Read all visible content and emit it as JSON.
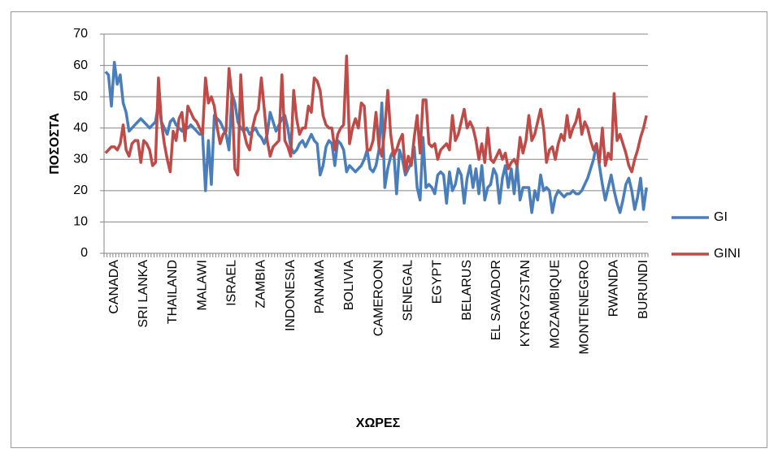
{
  "chart_data": {
    "type": "line",
    "y_label": "ΠΟΣΟΣΤΑ",
    "x_label": "ΧΩΡΕΣ",
    "categories": [
      null,
      null,
      null,
      "CANADA",
      null,
      null,
      null,
      null,
      null,
      null,
      null,
      null,
      null,
      "SRI LANKA",
      null,
      null,
      null,
      null,
      null,
      null,
      null,
      null,
      null,
      "THAILAND",
      null,
      null,
      null,
      null,
      null,
      null,
      null,
      null,
      null,
      "MALAWI",
      null,
      null,
      null,
      null,
      null,
      null,
      null,
      null,
      null,
      "ISRAEL",
      null,
      null,
      null,
      null,
      null,
      null,
      null,
      null,
      null,
      "ZAMBIA",
      null,
      null,
      null,
      null,
      null,
      null,
      null,
      null,
      null,
      "INDONESIA",
      null,
      null,
      null,
      null,
      null,
      null,
      null,
      null,
      null,
      "PANAMA",
      null,
      null,
      null,
      null,
      null,
      null,
      null,
      null,
      null,
      "BOLIVIA",
      null,
      null,
      null,
      null,
      null,
      null,
      null,
      null,
      null,
      "CAMEROON",
      null,
      null,
      null,
      null,
      null,
      null,
      null,
      null,
      null,
      "SENEGAL",
      null,
      null,
      null,
      null,
      null,
      null,
      null,
      null,
      null,
      "EGYPT",
      null,
      null,
      null,
      null,
      null,
      null,
      null,
      null,
      null,
      "BELARUS",
      null,
      null,
      null,
      null,
      null,
      null,
      null,
      null,
      null,
      "EL SAVADOR",
      null,
      null,
      null,
      null,
      null,
      null,
      null,
      null,
      null,
      "KYRGYZSTAN",
      null,
      null,
      null,
      null,
      null,
      null,
      null,
      null,
      null,
      "MOZAMBIQUE",
      null,
      null,
      null,
      null,
      null,
      null,
      null,
      null,
      null,
      "MONTENEGRO",
      null,
      null,
      null,
      null,
      null,
      null,
      null,
      null,
      null,
      "RWANDA",
      null,
      null,
      null,
      null,
      null,
      null,
      null,
      null,
      null,
      "BURUNDI",
      null
    ],
    "series": [
      {
        "name": "GI",
        "color": "#4a7ebb",
        "values": [
          58,
          57,
          47,
          61,
          54,
          57,
          48,
          45,
          39,
          40,
          41,
          42,
          43,
          42,
          41,
          40,
          41,
          42,
          48,
          42,
          40,
          38,
          42,
          43,
          41,
          40,
          39,
          41,
          40,
          41,
          40,
          39,
          38,
          38,
          20,
          36,
          22,
          44,
          43,
          42,
          40,
          38,
          33,
          51,
          48,
          42,
          40,
          39,
          40,
          38,
          39,
          40,
          38,
          37,
          35,
          38,
          45,
          42,
          39,
          41,
          43,
          44,
          40,
          34,
          32,
          33,
          35,
          36,
          34,
          36,
          38,
          36,
          35,
          25,
          28,
          34,
          36,
          35,
          28,
          36,
          35,
          33,
          26,
          28,
          27,
          26,
          27,
          28,
          30,
          33,
          27,
          26,
          28,
          33,
          48,
          21,
          27,
          31,
          33,
          19,
          33,
          30,
          25,
          27,
          29,
          34,
          21,
          17,
          37,
          21,
          22,
          21,
          19,
          25,
          26,
          25,
          16,
          26,
          20,
          22,
          27,
          25,
          16,
          24,
          28,
          21,
          27,
          19,
          28,
          17,
          21,
          22,
          27,
          25,
          16,
          24,
          28,
          21,
          27,
          19,
          28,
          17,
          21,
          21,
          21,
          13,
          20,
          17,
          25,
          20,
          21,
          20,
          13,
          18,
          20,
          19,
          18,
          19,
          19,
          20,
          19,
          19,
          20,
          22,
          24,
          27,
          30,
          35,
          28,
          22,
          17,
          21,
          25,
          20,
          16,
          13,
          17,
          22,
          24,
          20,
          14,
          18,
          24,
          14,
          21
        ]
      },
      {
        "name": "GINI",
        "color": "#be4b48",
        "values": [
          32,
          33,
          34,
          34,
          33,
          35,
          41,
          33,
          31,
          35,
          36,
          36,
          29,
          36,
          35,
          33,
          28,
          29,
          56,
          42,
          35,
          30,
          26,
          39,
          36,
          43,
          45,
          36,
          47,
          45,
          43,
          42,
          40,
          38,
          56,
          48,
          50,
          47,
          40,
          35,
          38,
          39,
          59,
          50,
          27,
          25,
          57,
          39,
          35,
          33,
          40,
          44,
          46,
          56,
          46,
          36,
          31,
          34,
          35,
          36,
          57,
          36,
          34,
          31,
          52,
          43,
          38,
          40,
          40,
          47,
          45,
          56,
          55,
          52,
          44,
          41,
          40,
          40,
          33,
          38,
          40,
          41,
          63,
          35,
          40,
          43,
          40,
          48,
          47,
          33,
          33,
          36,
          45,
          34,
          31,
          40,
          52,
          38,
          31,
          33,
          36,
          38,
          26,
          31,
          28,
          37,
          44,
          32,
          49,
          49,
          35,
          34,
          35,
          30,
          33,
          34,
          35,
          33,
          44,
          36,
          38,
          42,
          46,
          40,
          42,
          40,
          36,
          30,
          35,
          29,
          40,
          30,
          29,
          31,
          33,
          30,
          32,
          27,
          29,
          30,
          28,
          37,
          32,
          36,
          44,
          36,
          38,
          42,
          46,
          40,
          29,
          33,
          34,
          30,
          35,
          38,
          36,
          44,
          37,
          40,
          42,
          46,
          38,
          42,
          40,
          36,
          33,
          35,
          29,
          40,
          28,
          32,
          30,
          51,
          36,
          38,
          35,
          32,
          28,
          26,
          30,
          33,
          37,
          40,
          44
        ]
      }
    ],
    "ylim": [
      0,
      70
    ],
    "yticks": [
      0,
      10,
      20,
      30,
      40,
      50,
      60,
      70
    ],
    "grid": true,
    "legend": "right"
  }
}
